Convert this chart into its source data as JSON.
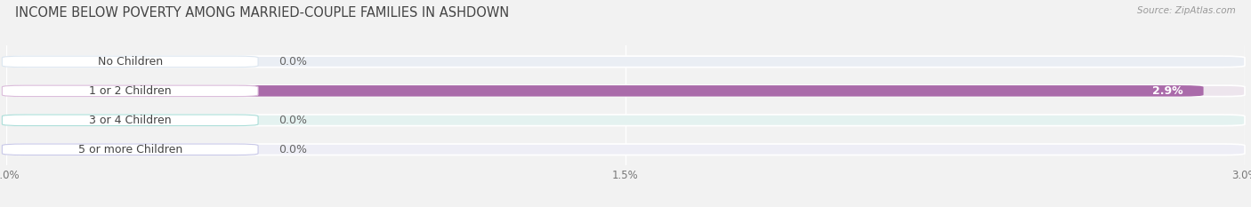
{
  "title": "INCOME BELOW POVERTY AMONG MARRIED-COUPLE FAMILIES IN ASHDOWN",
  "source": "Source: ZipAtlas.com",
  "categories": [
    "No Children",
    "1 or 2 Children",
    "3 or 4 Children",
    "5 or more Children"
  ],
  "values": [
    0.0,
    2.9,
    0.0,
    0.0
  ],
  "bar_colors": [
    "#8eb4d8",
    "#aa6baa",
    "#55c4b8",
    "#9999cc"
  ],
  "bg_colors": [
    "#eaeef4",
    "#ede5ed",
    "#e4f2f0",
    "#eeeef6"
  ],
  "label_bg_colors": [
    "#dce6f0",
    "#dbbddb",
    "#aaddd8",
    "#c8c8e8"
  ],
  "xlim": [
    0,
    3.0
  ],
  "xticks": [
    0.0,
    1.5,
    3.0
  ],
  "xticklabels": [
    "0.0%",
    "1.5%",
    "3.0%"
  ],
  "title_fontsize": 10.5,
  "label_fontsize": 9,
  "value_fontsize": 9,
  "bar_height": 0.38,
  "bar_gap": 1.0,
  "background_color": "#f2f2f2"
}
